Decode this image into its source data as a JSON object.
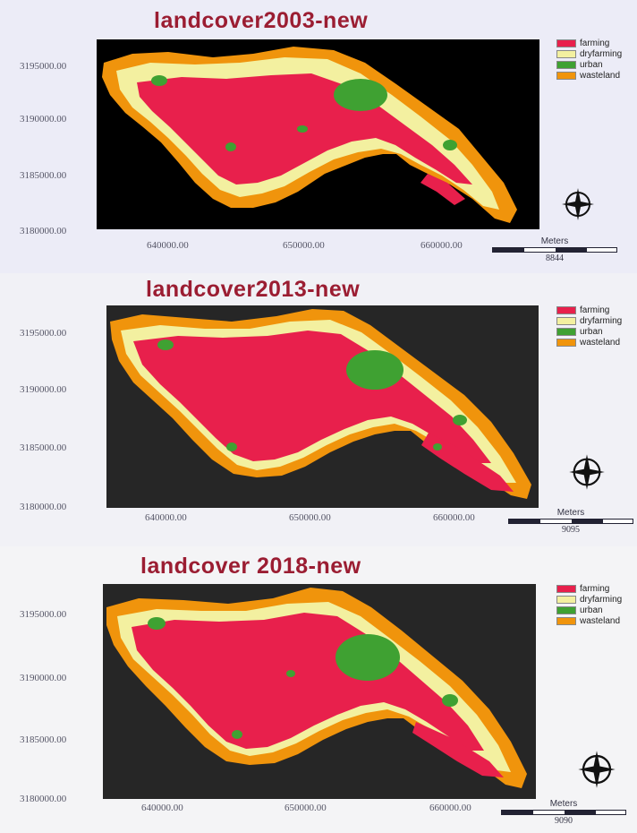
{
  "colors": {
    "farming": "#e8204c",
    "dryfarming": "#f3f0a0",
    "urban": "#3fa132",
    "wasteland": "#f0940c",
    "background": "#1e1e1e"
  },
  "maps": [
    {
      "title": "landcover2003-new",
      "y_ticks": [
        "3195000.00",
        "3190000.00",
        "3185000.00",
        "3180000.00"
      ],
      "x_ticks": [
        "640000.00",
        "650000.00",
        "660000.00"
      ],
      "legend": [
        {
          "label": "farming",
          "color": "#e8204c"
        },
        {
          "label": "dryfarming",
          "color": "#f3f0a0"
        },
        {
          "label": "urban",
          "color": "#3fa132"
        },
        {
          "label": "wasteland",
          "color": "#f0940c"
        }
      ],
      "scale_unit": "Meters",
      "scale_value": "8844"
    },
    {
      "title": "landcover2013-new",
      "y_ticks": [
        "3195000.00",
        "3190000.00",
        "3185000.00",
        "3180000.00"
      ],
      "x_ticks": [
        "640000.00",
        "650000.00",
        "660000.00"
      ],
      "legend": [
        {
          "label": "farming",
          "color": "#e8204c"
        },
        {
          "label": "dryfarming",
          "color": "#f3f0a0"
        },
        {
          "label": "urban",
          "color": "#3fa132"
        },
        {
          "label": "wasteland",
          "color": "#f0940c"
        }
      ],
      "scale_unit": "Meters",
      "scale_value": "9095"
    },
    {
      "title": "landcover 2018-new",
      "y_ticks": [
        "3195000.00",
        "3190000.00",
        "3185000.00",
        "3180000.00"
      ],
      "x_ticks": [
        "640000.00",
        "650000.00",
        "660000.00"
      ],
      "legend": [
        {
          "label": "farming",
          "color": "#e8204c"
        },
        {
          "label": "dryfarming",
          "color": "#f3f0a0"
        },
        {
          "label": "urban",
          "color": "#3fa132"
        },
        {
          "label": "wasteland",
          "color": "#f0940c"
        }
      ],
      "scale_unit": "Meters",
      "scale_value": "9090"
    }
  ]
}
